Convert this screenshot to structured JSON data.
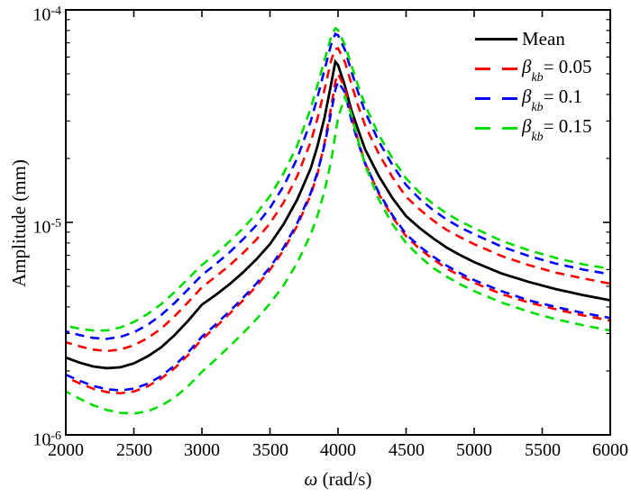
{
  "figure": {
    "background": "#ffffff",
    "axis_color": "#000000"
  },
  "axes": {
    "ylabel": "Amplitude (mm)",
    "xlabel": {
      "symbol": "ω",
      "rest": " (rad/s)"
    },
    "x_ticks": [
      2000,
      2500,
      3000,
      3500,
      4000,
      4500,
      5000,
      5500,
      6000
    ],
    "y_ticks": [
      {
        "base": "10",
        "exp": "-4"
      },
      {
        "base": "10",
        "exp": "-5"
      },
      {
        "base": "10",
        "exp": "-6"
      }
    ]
  },
  "legend": {
    "entries": [
      {
        "label": "Mean",
        "color": "#000000",
        "style": "solid"
      },
      {
        "sym": "β",
        "sub": "kb",
        "eq": "= 0.05",
        "color": "#ff0000",
        "style": "dashed"
      },
      {
        "sym": "β",
        "sub": "kb",
        "eq": "= 0.1",
        "color": "#0000ff",
        "style": "dashed"
      },
      {
        "sym": "β",
        "sub": "kb",
        "eq": "= 0.15",
        "color": "#00dd00",
        "style": "dashed"
      }
    ]
  },
  "chart_data": {
    "type": "line",
    "title": "",
    "xlabel": "ω (rad/s)",
    "ylabel": "Amplitude (mm)",
    "xlim": [
      2000,
      6000
    ],
    "ylim": [
      1e-06,
      0.0001
    ],
    "yscale": "log",
    "grid": false,
    "legend_position": "top-right inside",
    "y_unit_multiplier": 1e-06,
    "x": [
      2000,
      2100,
      2200,
      2300,
      2400,
      2500,
      2600,
      2700,
      2800,
      2900,
      3000,
      3100,
      3200,
      3300,
      3400,
      3500,
      3600,
      3700,
      3800,
      3850,
      3900,
      3950,
      3980,
      4000,
      4050,
      4100,
      4150,
      4200,
      4300,
      4400,
      4500,
      4600,
      4700,
      4800,
      4900,
      5000,
      5200,
      5400,
      5600,
      5800,
      6000
    ],
    "series": [
      {
        "name": "Mean",
        "color": "#000000",
        "style": "solid",
        "width": 2.8,
        "dash": null,
        "dashoffset": 0,
        "values": [
          2.31,
          2.19,
          2.1,
          2.06,
          2.08,
          2.17,
          2.34,
          2.58,
          2.95,
          3.45,
          4.1,
          4.55,
          5.1,
          5.8,
          6.7,
          7.9,
          9.8,
          12.8,
          18.0,
          23.0,
          31.0,
          45.0,
          57.0,
          55.0,
          44.0,
          33.5,
          27.0,
          22.0,
          16.5,
          13.0,
          10.7,
          9.4,
          8.4,
          7.6,
          7.0,
          6.5,
          5.75,
          5.25,
          4.85,
          4.55,
          4.3
        ]
      },
      {
        "name": "beta_kb = 0.05 upper bound",
        "color": "#ff0000",
        "style": "dashed",
        "width": 2.6,
        "dash": [
          10,
          7
        ],
        "dashoffset": 3,
        "values": [
          2.73,
          2.61,
          2.52,
          2.48,
          2.52,
          2.64,
          2.85,
          3.16,
          3.62,
          4.22,
          4.95,
          5.55,
          6.25,
          7.15,
          8.3,
          9.9,
          12.4,
          16.5,
          24.0,
          31.0,
          42.0,
          58.0,
          65.5,
          66.0,
          57.0,
          44.5,
          35.0,
          28.5,
          21.0,
          16.3,
          13.2,
          11.5,
          10.2,
          9.2,
          8.5,
          7.9,
          6.95,
          6.3,
          5.8,
          5.45,
          5.15
        ]
      },
      {
        "name": "beta_kb = 0.05 lower bound",
        "color": "#ff0000",
        "style": "dashed",
        "width": 2.6,
        "dash": [
          10,
          7
        ],
        "dashoffset": 9,
        "values": [
          1.87,
          1.75,
          1.65,
          1.59,
          1.57,
          1.6,
          1.69,
          1.84,
          2.06,
          2.38,
          2.82,
          3.21,
          3.7,
          4.28,
          5.0,
          5.98,
          7.4,
          9.65,
          13.5,
          17.0,
          23.5,
          35.0,
          46.0,
          50.0,
          43.0,
          31.5,
          24.0,
          19.0,
          13.6,
          10.6,
          8.6,
          7.5,
          6.7,
          6.05,
          5.6,
          5.2,
          4.6,
          4.2,
          3.9,
          3.65,
          3.45
        ]
      },
      {
        "name": "beta_kb = 0.1 upper bound",
        "color": "#0000ff",
        "style": "dashed",
        "width": 2.6,
        "dash": [
          10,
          7
        ],
        "dashoffset": 6,
        "values": [
          3.07,
          2.95,
          2.86,
          2.83,
          2.89,
          3.04,
          3.29,
          3.66,
          4.18,
          4.85,
          5.65,
          6.35,
          7.2,
          8.3,
          9.7,
          11.7,
          14.8,
          20.0,
          30.0,
          39.0,
          52.0,
          69.0,
          77.0,
          76.0,
          65.0,
          51.0,
          40.5,
          33.0,
          24.0,
          18.6,
          15.0,
          12.9,
          11.4,
          10.3,
          9.45,
          8.8,
          7.7,
          6.95,
          6.4,
          6.0,
          5.7
        ]
      },
      {
        "name": "beta_kb = 0.1 lower bound",
        "color": "#0000ff",
        "style": "dashed",
        "width": 2.6,
        "dash": [
          10,
          7
        ],
        "dashoffset": 0,
        "values": [
          1.92,
          1.8,
          1.7,
          1.64,
          1.62,
          1.65,
          1.74,
          1.89,
          2.12,
          2.45,
          2.9,
          3.3,
          3.8,
          4.4,
          5.15,
          6.15,
          7.6,
          9.9,
          13.8,
          17.3,
          23.0,
          33.0,
          42.0,
          46.0,
          41.0,
          30.0,
          23.5,
          18.8,
          13.8,
          10.8,
          8.8,
          7.7,
          6.9,
          6.25,
          5.75,
          5.35,
          4.75,
          4.3,
          4.0,
          3.75,
          3.55
        ]
      },
      {
        "name": "beta_kb = 0.15 upper bound",
        "color": "#00dd00",
        "style": "dashed",
        "width": 2.6,
        "dash": [
          10,
          7
        ],
        "dashoffset": 12,
        "values": [
          3.26,
          3.16,
          3.1,
          3.1,
          3.2,
          3.4,
          3.7,
          4.12,
          4.7,
          5.45,
          6.3,
          7.1,
          8.1,
          9.35,
          11.0,
          13.3,
          17.0,
          23.0,
          34.5,
          44.5,
          58.0,
          75.0,
          82.0,
          80.5,
          68.5,
          54.5,
          43.5,
          35.5,
          25.8,
          20.0,
          16.1,
          13.8,
          12.2,
          11.0,
          10.1,
          9.4,
          8.2,
          7.4,
          6.8,
          6.35,
          6.05
        ]
      },
      {
        "name": "beta_kb = 0.15 lower bound",
        "color": "#00dd00",
        "style": "dashed",
        "width": 2.6,
        "dash": [
          10,
          7
        ],
        "dashoffset": 4,
        "values": [
          1.6,
          1.48,
          1.38,
          1.31,
          1.27,
          1.26,
          1.29,
          1.37,
          1.5,
          1.7,
          1.98,
          2.26,
          2.6,
          3.0,
          3.5,
          4.15,
          5.05,
          6.45,
          8.8,
          10.8,
          14.0,
          19.5,
          26.0,
          31.0,
          39.0,
          32.0,
          24.0,
          18.5,
          12.8,
          9.8,
          8.0,
          6.9,
          6.1,
          5.55,
          5.1,
          4.75,
          4.2,
          3.8,
          3.5,
          3.28,
          3.1
        ]
      }
    ]
  }
}
